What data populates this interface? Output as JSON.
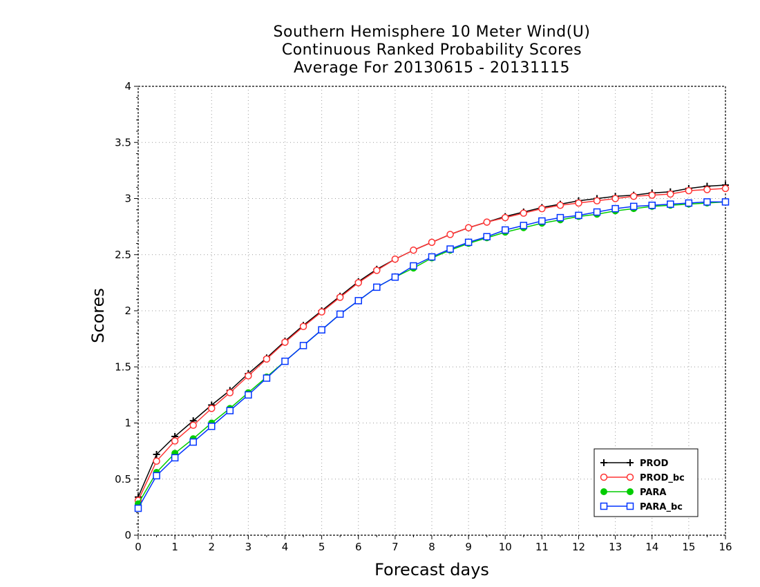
{
  "chart_data": {
    "type": "line",
    "title": [
      "Southern Hemisphere 10 Meter Wind(U)",
      "Continuous Ranked Probability Scores",
      "Average For 20130615 - 20131115"
    ],
    "xlabel": "Forecast days",
    "ylabel": "Scores",
    "xlim": [
      0,
      16
    ],
    "ylim": [
      0,
      4
    ],
    "x_ticks": [
      0,
      1,
      2,
      3,
      4,
      5,
      6,
      7,
      8,
      9,
      10,
      11,
      12,
      13,
      14,
      15,
      16
    ],
    "y_ticks": [
      0,
      0.5,
      1,
      1.5,
      2,
      2.5,
      3,
      3.5,
      4
    ],
    "y_tick_labels": [
      "0",
      "0.5",
      "1",
      "1.5",
      "2",
      "2.5",
      "3",
      "3.5",
      "4"
    ],
    "grid": true,
    "legend_position": "bottom-right",
    "x": [
      0,
      0.5,
      1,
      1.5,
      2,
      2.5,
      3,
      3.5,
      4,
      4.5,
      5,
      5.5,
      6,
      6.5,
      7,
      7.5,
      8,
      8.5,
      9,
      9.5,
      10,
      10.5,
      11,
      11.5,
      12,
      12.5,
      13,
      13.5,
      14,
      14.5,
      15,
      15.5,
      16
    ],
    "series": [
      {
        "name": "PROD",
        "color": "#000000",
        "marker": "plus",
        "values": [
          0.34,
          0.72,
          0.88,
          1.02,
          1.16,
          1.29,
          1.44,
          1.58,
          1.73,
          1.87,
          2.0,
          2.13,
          2.26,
          2.37,
          2.46,
          2.54,
          2.61,
          2.68,
          2.74,
          2.79,
          2.84,
          2.88,
          2.92,
          2.95,
          2.98,
          3.0,
          3.02,
          3.03,
          3.05,
          3.06,
          3.09,
          3.11,
          3.12
        ]
      },
      {
        "name": "PROD_bc",
        "color": "#ff3333",
        "marker": "circle-open",
        "values": [
          0.31,
          0.66,
          0.84,
          0.98,
          1.13,
          1.27,
          1.42,
          1.57,
          1.72,
          1.86,
          1.99,
          2.12,
          2.25,
          2.36,
          2.46,
          2.54,
          2.61,
          2.68,
          2.74,
          2.79,
          2.83,
          2.87,
          2.91,
          2.94,
          2.96,
          2.98,
          3.0,
          3.02,
          3.03,
          3.04,
          3.07,
          3.08,
          3.09
        ]
      },
      {
        "name": "PARA",
        "color": "#00cc00",
        "marker": "circle-filled",
        "values": [
          0.28,
          0.56,
          0.73,
          0.86,
          1.0,
          1.13,
          1.27,
          1.41,
          1.55,
          1.69,
          1.83,
          1.97,
          2.09,
          2.21,
          2.3,
          2.38,
          2.47,
          2.54,
          2.6,
          2.65,
          2.7,
          2.74,
          2.78,
          2.81,
          2.84,
          2.86,
          2.89,
          2.91,
          2.93,
          2.94,
          2.95,
          2.96,
          2.97
        ]
      },
      {
        "name": "PARA_bc",
        "color": "#0033ff",
        "marker": "square-open",
        "values": [
          0.24,
          0.53,
          0.69,
          0.83,
          0.97,
          1.11,
          1.25,
          1.4,
          1.55,
          1.69,
          1.83,
          1.97,
          2.09,
          2.21,
          2.3,
          2.4,
          2.48,
          2.55,
          2.61,
          2.66,
          2.72,
          2.76,
          2.8,
          2.83,
          2.85,
          2.88,
          2.91,
          2.93,
          2.94,
          2.95,
          2.96,
          2.97,
          2.97
        ]
      }
    ]
  }
}
